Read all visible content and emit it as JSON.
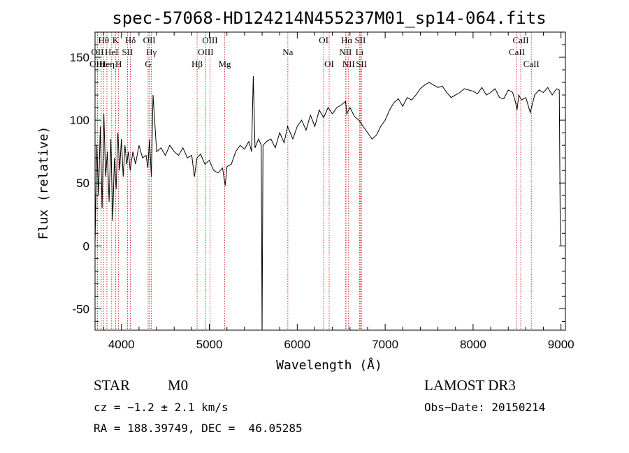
{
  "chart_data": {
    "type": "line",
    "title": "spec-57068-HD124214N455237M01_sp14-064.fits",
    "xlabel": "Wavelength (Å)",
    "ylabel": "Flux (relative)",
    "xlim": [
      3700,
      9050
    ],
    "ylim": [
      -67,
      170
    ],
    "xticks": [
      4000,
      5000,
      6000,
      7000,
      8000,
      9000
    ],
    "yticks": [
      -50,
      0,
      50,
      100,
      150
    ],
    "series": [
      {
        "name": "flux",
        "x": [
          3700,
          3720,
          3740,
          3760,
          3780,
          3800,
          3820,
          3840,
          3860,
          3880,
          3900,
          3920,
          3940,
          3960,
          3980,
          4000,
          4020,
          4040,
          4060,
          4080,
          4100,
          4130,
          4160,
          4200,
          4240,
          4280,
          4300,
          4320,
          4340,
          4360,
          4400,
          4450,
          4500,
          4550,
          4600,
          4650,
          4700,
          4750,
          4800,
          4830,
          4860,
          4900,
          4950,
          5000,
          5050,
          5100,
          5150,
          5180,
          5200,
          5250,
          5300,
          5350,
          5400,
          5450,
          5480,
          5500,
          5520,
          5560,
          5590,
          5600,
          5610,
          5650,
          5700,
          5750,
          5800,
          5850,
          5890,
          5950,
          6000,
          6050,
          6100,
          6150,
          6200,
          6250,
          6300,
          6350,
          6400,
          6450,
          6500,
          6550,
          6563,
          6600,
          6650,
          6700,
          6750,
          6800,
          6850,
          6900,
          6950,
          7000,
          7050,
          7100,
          7150,
          7200,
          7250,
          7300,
          7350,
          7400,
          7450,
          7500,
          7550,
          7600,
          7650,
          7700,
          7750,
          7800,
          7850,
          7900,
          7950,
          8000,
          8050,
          8100,
          8150,
          8200,
          8250,
          8300,
          8350,
          8400,
          8450,
          8480,
          8500,
          8520,
          8550,
          8600,
          8650,
          8700,
          8750,
          8800,
          8850,
          8900,
          8950,
          8980,
          8990,
          9000
        ],
        "y": [
          2,
          80,
          40,
          95,
          30,
          105,
          55,
          75,
          35,
          85,
          20,
          70,
          45,
          90,
          60,
          85,
          55,
          80,
          65,
          75,
          60,
          75,
          65,
          80,
          70,
          72,
          62,
          85,
          55,
          120,
          75,
          78,
          72,
          80,
          75,
          72,
          78,
          70,
          72,
          55,
          70,
          73,
          65,
          68,
          60,
          58,
          62,
          48,
          63,
          65,
          75,
          80,
          77,
          83,
          75,
          135,
          78,
          85,
          80,
          -70,
          80,
          83,
          85,
          78,
          90,
          82,
          95,
          85,
          95,
          100,
          92,
          104,
          95,
          108,
          102,
          110,
          105,
          110,
          112,
          115,
          105,
          110,
          103,
          100,
          95,
          90,
          85,
          88,
          95,
          100,
          108,
          114,
          117,
          111,
          118,
          116,
          120,
          125,
          128,
          130,
          128,
          126,
          127,
          122,
          118,
          120,
          122,
          125,
          124,
          123,
          121,
          126,
          120,
          122,
          125,
          118,
          117,
          124,
          122,
          115,
          108,
          120,
          116,
          118,
          106,
          120,
          124,
          122,
          126,
          120,
          125,
          124,
          25,
          0
        ]
      }
    ],
    "spectral_lines": [
      {
        "label": "Hθ",
        "x": 3798,
        "row": 1
      },
      {
        "label": "OII",
        "x": 3727,
        "row": 2
      },
      {
        "label": "OIII",
        "x": 3726,
        "row": 3
      },
      {
        "label": "Hε",
        "x": 3770,
        "row": 3
      },
      {
        "label": "Heη",
        "x": 3835,
        "row": 3
      },
      {
        "label": "K",
        "x": 3934,
        "row": 1
      },
      {
        "label": "HeI",
        "x": 3889,
        "row": 2
      },
      {
        "label": "SII",
        "x": 4069,
        "row": 2
      },
      {
        "label": "H",
        "x": 3968,
        "row": 3
      },
      {
        "label": "Hδ",
        "x": 4102,
        "row": 1
      },
      {
        "label": "OII",
        "x": 4317,
        "row": 1
      },
      {
        "label": "Hγ",
        "x": 4341,
        "row": 2
      },
      {
        "label": "G",
        "x": 4304,
        "row": 3
      },
      {
        "label": "OIII",
        "x": 5007,
        "row": 1
      },
      {
        "label": "OIII",
        "x": 4959,
        "row": 2
      },
      {
        "label": "Hβ",
        "x": 4861,
        "row": 3
      },
      {
        "label": "Mg",
        "x": 5175,
        "row": 3
      },
      {
        "label": "Na",
        "x": 5893,
        "row": 2
      },
      {
        "label": "OI",
        "x": 6300,
        "row": 1
      },
      {
        "label": "OI",
        "x": 6363,
        "row": 3
      },
      {
        "label": "Hα",
        "x": 6563,
        "row": 1
      },
      {
        "label": "SII",
        "x": 6716,
        "row": 1
      },
      {
        "label": "NII",
        "x": 6548,
        "row": 2
      },
      {
        "label": "Li",
        "x": 6708,
        "row": 2
      },
      {
        "label": "NII",
        "x": 6584,
        "row": 3
      },
      {
        "label": "SII",
        "x": 6731,
        "row": 3
      },
      {
        "label": "CaII",
        "x": 8542,
        "row": 1
      },
      {
        "label": "CaII",
        "x": 8498,
        "row": 2
      },
      {
        "label": "CaII",
        "x": 8662,
        "row": 3
      }
    ],
    "colors": {
      "spectrum": "#000000",
      "line_markers": "#cc0000"
    }
  },
  "info": {
    "class": "STAR",
    "subclass": "M0",
    "survey": "LAMOST DR3",
    "cz": "cz = −1.2 ± 2.1 km/s",
    "obs_date": "Obs−Date: 20150214",
    "radec": "RA = 188.39749, DEC =  46.05285"
  }
}
